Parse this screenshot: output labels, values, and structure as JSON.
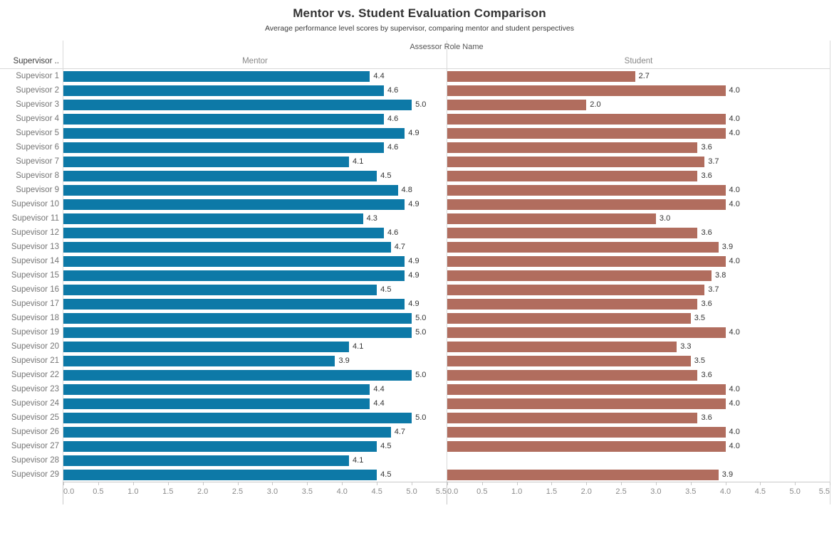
{
  "title": "Mentor vs. Student Evaluation Comparison",
  "subtitle": "Average performance level scores by supervisor, comparing mentor and student perspectives",
  "column_header": "Assessor Role Name",
  "row_header": "Supervisor ..",
  "colors": {
    "mentor_bar": "#0D79A7",
    "student_bar": "#B16D5E"
  },
  "axis": {
    "min": 0,
    "max": 5.5,
    "tick_labels": [
      "0.0",
      "0.5",
      "1.0",
      "1.5",
      "2.0",
      "2.5",
      "3.0",
      "3.5",
      "4.0",
      "4.5",
      "5.0",
      "5.5"
    ]
  },
  "chart_data": {
    "type": "bar",
    "orientation": "horizontal",
    "title": "Mentor vs. Student Evaluation Comparison",
    "subtitle": "Average performance level scores by supervisor, comparing mentor and student perspectives",
    "panel_axis_title": "Assessor Role Name",
    "xlim": [
      0,
      5.5
    ],
    "grid": false,
    "value_label_format": "0.1f",
    "categories": [
      "Supevisor 1",
      "Supevisor 2",
      "Supevisor 3",
      "Supevisor 4",
      "Supevisor 5",
      "Supevisor 6",
      "Supevisor 7",
      "Supevisor 8",
      "Supevisor 9",
      "Supevisor 10",
      "Supevisor 11",
      "Supevisor 12",
      "Supevisor 13",
      "Supevisor 14",
      "Supevisor 15",
      "Supevisor 16",
      "Supevisor 17",
      "Supevisor 18",
      "Supevisor 19",
      "Supevisor 20",
      "Supevisor 21",
      "Supevisor 22",
      "Supevisor 23",
      "Supevisor 24",
      "Supevisor 25",
      "Supevisor 26",
      "Supevisor 27",
      "Supevisor 28",
      "Supevisor 29"
    ],
    "series": [
      {
        "name": "Mentor",
        "color": "#0D79A7",
        "values": [
          4.4,
          4.6,
          5.0,
          4.6,
          4.9,
          4.6,
          4.1,
          4.5,
          4.8,
          4.9,
          4.3,
          4.6,
          4.7,
          4.9,
          4.9,
          4.5,
          4.9,
          5.0,
          5.0,
          4.1,
          3.9,
          5.0,
          4.4,
          4.4,
          5.0,
          4.7,
          4.5,
          4.1,
          4.5
        ]
      },
      {
        "name": "Student",
        "color": "#B16D5E",
        "values": [
          2.7,
          4.0,
          2.0,
          4.0,
          4.0,
          3.6,
          3.7,
          3.6,
          4.0,
          4.0,
          3.0,
          3.6,
          3.9,
          4.0,
          3.8,
          3.7,
          3.6,
          3.5,
          4.0,
          3.3,
          3.5,
          3.6,
          4.0,
          4.0,
          3.6,
          4.0,
          4.0,
          null,
          3.9
        ]
      }
    ]
  }
}
